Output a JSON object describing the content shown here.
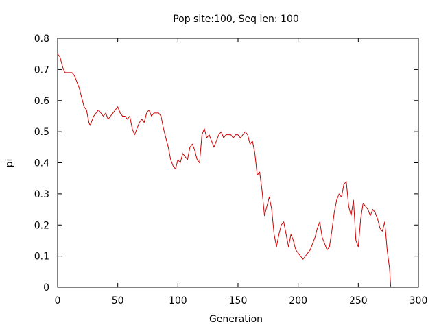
{
  "chart_data": {
    "type": "line",
    "title": "Pop site:100, Seq len: 100",
    "xlabel": "Generation",
    "ylabel": "pi",
    "xlim": [
      0,
      300
    ],
    "ylim": [
      0,
      0.8
    ],
    "grid": false,
    "legend": "none",
    "x_ticks": [
      0,
      50,
      100,
      150,
      200,
      250,
      300
    ],
    "y_ticks": [
      0,
      0.1,
      0.2,
      0.3,
      0.4,
      0.5,
      0.6,
      0.7,
      0.8
    ],
    "x_tick_labels": [
      "0",
      "50",
      "100",
      "150",
      "200",
      "250",
      "300"
    ],
    "y_tick_labels": [
      "0",
      "0.1",
      "0.2",
      "0.3",
      "0.4",
      "0.5",
      "0.6",
      "0.7",
      "0.8"
    ],
    "series": [
      {
        "color": "#cc0000",
        "x": [
          0,
          2,
          4,
          6,
          8,
          10,
          12,
          14,
          16,
          18,
          20,
          22,
          24,
          26,
          27,
          28,
          30,
          32,
          34,
          36,
          38,
          40,
          42,
          44,
          46,
          48,
          50,
          52,
          54,
          56,
          58,
          60,
          62,
          64,
          66,
          68,
          70,
          72,
          74,
          76,
          78,
          80,
          82,
          84,
          86,
          88,
          90,
          92,
          94,
          96,
          98,
          100,
          102,
          104,
          106,
          108,
          110,
          112,
          114,
          116,
          118,
          120,
          122,
          124,
          126,
          128,
          130,
          132,
          134,
          136,
          138,
          140,
          142,
          144,
          146,
          148,
          150,
          152,
          154,
          156,
          158,
          160,
          162,
          164,
          166,
          168,
          170,
          172,
          174,
          176,
          178,
          180,
          182,
          184,
          186,
          188,
          190,
          192,
          194,
          196,
          198,
          200,
          202,
          204,
          206,
          208,
          210,
          212,
          214,
          216,
          218,
          220,
          222,
          224,
          226,
          228,
          230,
          232,
          234,
          236,
          238,
          240,
          242,
          244,
          246,
          248,
          250,
          252,
          254,
          256,
          258,
          260,
          262,
          264,
          266,
          268,
          270,
          272,
          274,
          276,
          277
        ],
        "y": [
          0.75,
          0.74,
          0.71,
          0.69,
          0.69,
          0.69,
          0.69,
          0.68,
          0.66,
          0.64,
          0.61,
          0.58,
          0.57,
          0.53,
          0.52,
          0.53,
          0.55,
          0.56,
          0.57,
          0.56,
          0.55,
          0.56,
          0.54,
          0.55,
          0.56,
          0.57,
          0.58,
          0.56,
          0.55,
          0.55,
          0.54,
          0.55,
          0.51,
          0.49,
          0.51,
          0.53,
          0.54,
          0.53,
          0.56,
          0.57,
          0.55,
          0.56,
          0.56,
          0.56,
          0.55,
          0.51,
          0.48,
          0.45,
          0.41,
          0.39,
          0.38,
          0.41,
          0.4,
          0.43,
          0.42,
          0.41,
          0.45,
          0.46,
          0.44,
          0.41,
          0.4,
          0.49,
          0.51,
          0.48,
          0.49,
          0.47,
          0.45,
          0.47,
          0.49,
          0.5,
          0.48,
          0.49,
          0.49,
          0.49,
          0.48,
          0.49,
          0.49,
          0.48,
          0.49,
          0.5,
          0.49,
          0.46,
          0.47,
          0.43,
          0.36,
          0.37,
          0.31,
          0.23,
          0.26,
          0.29,
          0.25,
          0.17,
          0.13,
          0.17,
          0.2,
          0.21,
          0.17,
          0.13,
          0.17,
          0.15,
          0.12,
          0.11,
          0.1,
          0.09,
          0.1,
          0.11,
          0.12,
          0.14,
          0.16,
          0.19,
          0.21,
          0.16,
          0.14,
          0.12,
          0.13,
          0.18,
          0.24,
          0.28,
          0.3,
          0.29,
          0.33,
          0.34,
          0.26,
          0.23,
          0.28,
          0.15,
          0.13,
          0.22,
          0.27,
          0.26,
          0.25,
          0.23,
          0.25,
          0.24,
          0.22,
          0.19,
          0.18,
          0.21,
          0.12,
          0.06,
          0.0
        ]
      }
    ]
  }
}
